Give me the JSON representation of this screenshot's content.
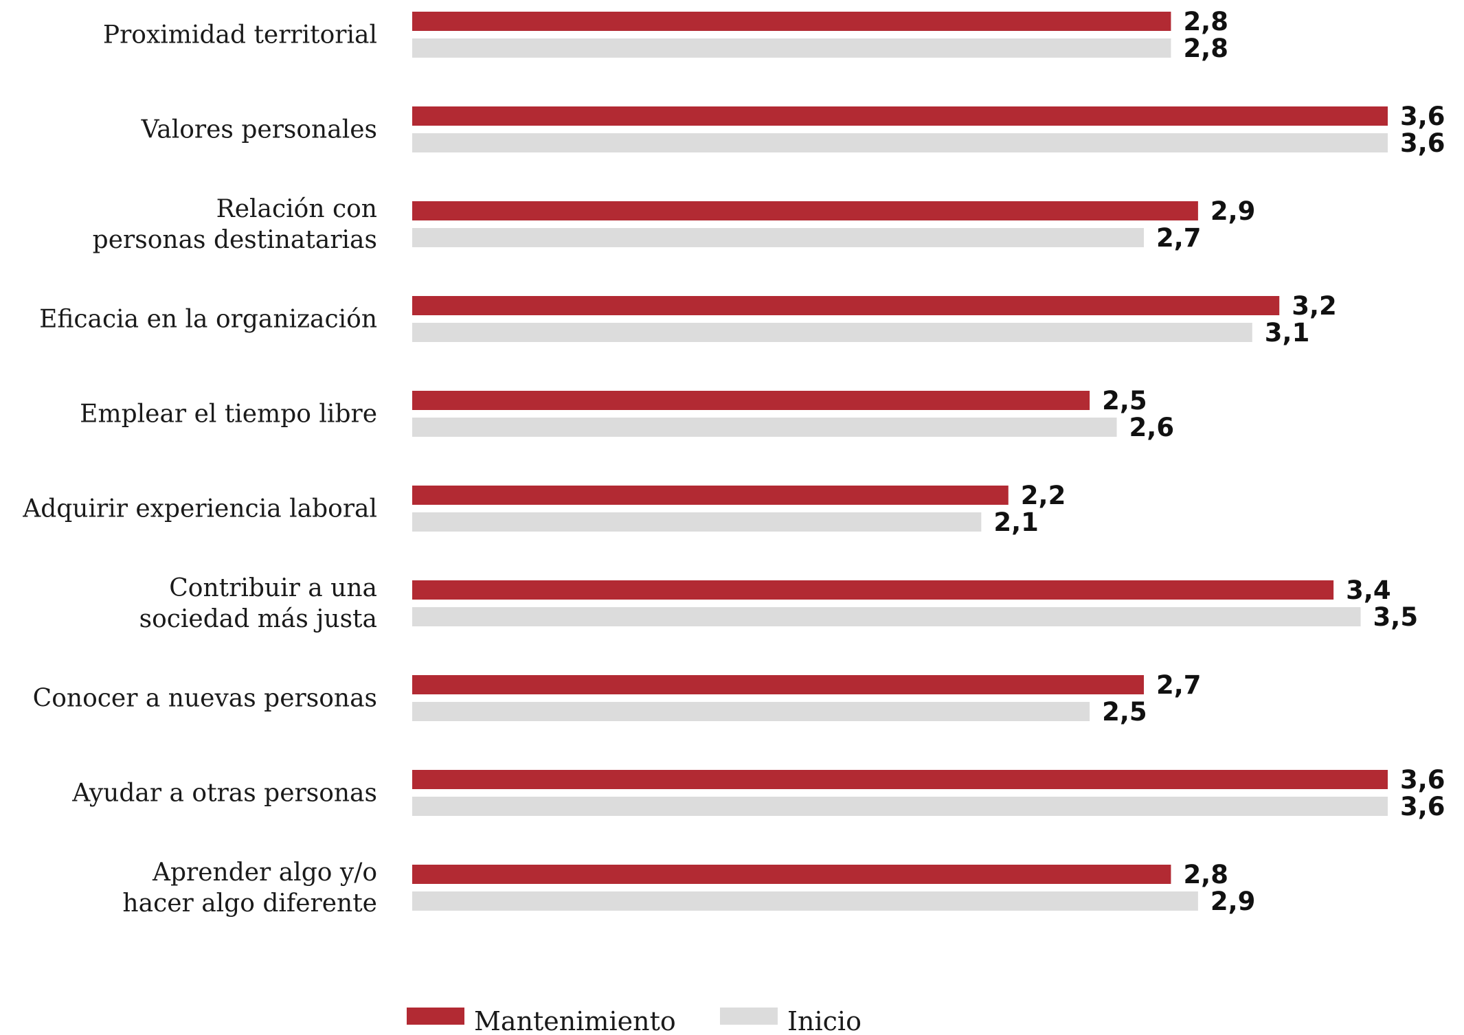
{
  "chart_data": {
    "type": "bar",
    "orientation": "horizontal",
    "categories": [
      [
        "Proximidad territorial"
      ],
      [
        "Valores personales"
      ],
      [
        "Relación con",
        "personas destinatarias"
      ],
      [
        "Eficacia en la organización"
      ],
      [
        "Emplear el tiempo libre"
      ],
      [
        "Adquirir experiencia laboral"
      ],
      [
        "Contribuir a una",
        "sociedad más justa"
      ],
      [
        "Conocer a nuevas personas"
      ],
      [
        "Ayudar a otras personas"
      ],
      [
        "Aprender algo y/o",
        "hacer algo diferente"
      ]
    ],
    "series": [
      {
        "name": "Mantenimiento",
        "color": "#b22a33",
        "values": [
          2.8,
          3.6,
          2.9,
          3.2,
          2.5,
          2.2,
          3.4,
          2.7,
          3.6,
          2.8
        ],
        "labels": [
          "2,8",
          "3,6",
          "2,9",
          "3,2",
          "2,5",
          "2,2",
          "3,4",
          "2,7",
          "3,6",
          "2,8"
        ]
      },
      {
        "name": "Inicio",
        "color": "#dcdcdc",
        "values": [
          2.8,
          3.6,
          2.7,
          3.1,
          2.6,
          2.1,
          3.5,
          2.5,
          3.6,
          2.9
        ],
        "labels": [
          "2,8",
          "3,6",
          "2,7",
          "3,1",
          "2,6",
          "2,1",
          "3,5",
          "2,5",
          "3,6",
          "2,9"
        ]
      }
    ],
    "xlim": [
      0,
      3.6
    ],
    "grid": false,
    "legend_position": "bottom"
  }
}
